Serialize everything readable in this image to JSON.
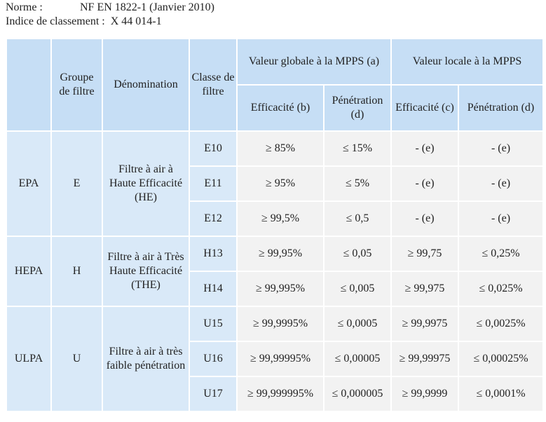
{
  "meta": {
    "norme_label": "Norme :",
    "norme_value": "NF EN 1822-1 (Janvier 2010)",
    "indice_label": "Indice de classement :",
    "indice_value": "X 44 014-1"
  },
  "table": {
    "headers": {
      "groupe": "Groupe de filtre",
      "denomination": "Dénomination",
      "classe": "Classe de filtre",
      "globale": "Valeur globale à la MPPS (a)",
      "locale": "Valeur locale à la MPPS",
      "eff_b": "Efficacité (b)",
      "pen_d": "Pénétration (d)",
      "eff_c": "Efficacité (c)",
      "pen_d2": "Pénétration (d)"
    },
    "groups": [
      {
        "type": "EPA",
        "groupe": "E",
        "denomination": "Filtre à air à Haute Efficacité (HE)",
        "rows": [
          {
            "classe": "E10",
            "eff_global": "≥ 85%",
            "pen_global": "≤ 15%",
            "eff_local": "- (e)",
            "pen_local": "- (e)"
          },
          {
            "classe": "E11",
            "eff_global": "≥  95%",
            "pen_global": "≤ 5%",
            "eff_local": "- (e)",
            "pen_local": "- (e)"
          },
          {
            "classe": "E12",
            "eff_global": "≥ 99,5%",
            "pen_global": "≤ 0,5",
            "eff_local": "- (e)",
            "pen_local": "- (e)"
          }
        ]
      },
      {
        "type": "HEPA",
        "groupe": "H",
        "denomination": "Filtre à air à Très Haute Efficacité (THE)",
        "rows": [
          {
            "classe": "H13",
            "eff_global": "≥ 99,95%",
            "pen_global": "≤ 0,05",
            "eff_local": "≥ 99,75",
            "pen_local": "≤ 0,25%"
          },
          {
            "classe": "H14",
            "eff_global": "≥ 99,995%",
            "pen_global": "≤ 0,005",
            "eff_local": "≥ 99,975",
            "pen_local": "≤ 0,025%"
          }
        ]
      },
      {
        "type": "ULPA",
        "groupe": "U",
        "denomination": "Filtre à air à très faible pénétration",
        "rows": [
          {
            "classe": "U15",
            "eff_global": "≥ 99,9995%",
            "pen_global": "≤ 0,0005",
            "eff_local": "≥ 99,9975",
            "pen_local": "≤ 0,0025%"
          },
          {
            "classe": "U16",
            "eff_global": "≥ 99,99995%",
            "pen_global": "≤ 0,00005",
            "eff_local": "≥ 99,99975",
            "pen_local": "≤ 0,00025%"
          },
          {
            "classe": "U17",
            "eff_global": "≥ 99,999995%",
            "pen_global": "≤ 0,000005",
            "eff_local": "≥ 99,9999",
            "pen_local": "≤ 0,0001%"
          }
        ]
      }
    ]
  }
}
